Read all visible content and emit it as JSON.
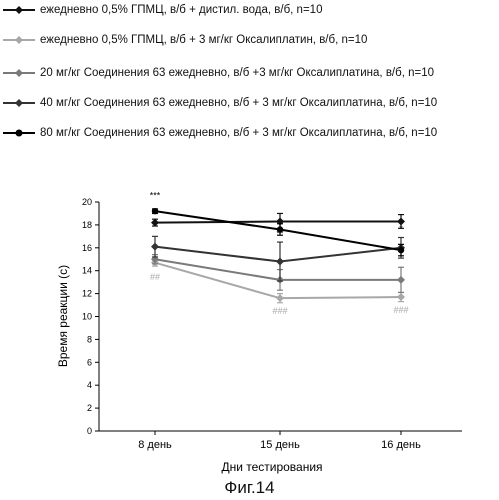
{
  "legend": [
    {
      "label": "ежедневно 0,5% ГПМЦ, в/б + дистил. вода, в/б, n=10",
      "color": "#111111",
      "marker": "diamond"
    },
    {
      "label": "ежедневно 0,5% ГПМЦ, в/б + 3 мг/кг Оксалиплатин, в/б, n=10",
      "color": "#a8a8a8",
      "marker": "diamond"
    },
    {
      "label": "20 мг/кг Соединения 63 ежедневно, в/б +3 мг/кг Оксалиплатина, в/б, n=10",
      "color": "#7a7a7a",
      "marker": "diamond"
    },
    {
      "label": "40 мг/кг Соединения 63 ежедневно, в/б + 3 мг/кг Оксалиплатина, в/б, n=10",
      "color": "#333333",
      "marker": "diamond"
    },
    {
      "label": "80 мг/кг Соединения 63 ежедневно, в/б + 3 мг/кг Оксалиплатина, в/б, n=10",
      "color": "#000000",
      "marker": "circle"
    }
  ],
  "chart_data": {
    "type": "line",
    "categories": [
      "8 день",
      "15 день",
      "16 день"
    ],
    "xlabel": "Дни тестирования",
    "ylabel": "Время реакции (с)",
    "ylim": [
      0,
      20
    ],
    "yticks": [
      0,
      2,
      4,
      6,
      8,
      10,
      12,
      14,
      16,
      18,
      20
    ],
    "grid": false,
    "legend_position": "top",
    "series": [
      {
        "name": "ежедневно 0,5% ГПМЦ, в/б + дистил. вода, в/б, n=10",
        "values": [
          18.2,
          18.3,
          18.3
        ],
        "errors": [
          0.3,
          0.7,
          0.6
        ],
        "color": "#111111",
        "marker": "diamond"
      },
      {
        "name": "ежедневно 0,5% ГПМЦ, в/б + 3 мг/кг Оксалиплатин, в/б, n=10",
        "values": [
          14.7,
          11.6,
          11.7
        ],
        "errors": [
          0.3,
          0.4,
          0.4
        ],
        "color": "#a8a8a8",
        "marker": "diamond"
      },
      {
        "name": "20 мг/кг Соединения 63 ежедневно, в/б +3 мг/кг Оксалиплатина, в/б, n=10",
        "values": [
          15.0,
          13.2,
          13.2
        ],
        "errors": [
          0.4,
          0.9,
          1.1
        ],
        "color": "#7a7a7a",
        "marker": "diamond"
      },
      {
        "name": "40 мг/кг Соединения 63 ежедневно, в/б + 3 мг/кг Оксалиплатина, в/б, n=10",
        "values": [
          16.1,
          14.8,
          16.0
        ],
        "errors": [
          0.9,
          1.7,
          0.9
        ],
        "color": "#333333",
        "marker": "diamond"
      },
      {
        "name": "80 мг/кг Соединения 63 ежедневно, в/б + 3 мг/кг Оксалиплатина, в/б, n=10",
        "values": [
          19.2,
          17.6,
          15.8
        ],
        "errors": [
          0.2,
          0.5,
          0.5
        ],
        "color": "#000000",
        "marker": "circle"
      }
    ],
    "annotations": [
      {
        "text": "***",
        "category": "8 день",
        "y": 20.3,
        "color": "#000000"
      },
      {
        "text": "##",
        "category": "8 день",
        "y": 13.2,
        "color": "#a8a8a8"
      },
      {
        "text": "**",
        "category": "15 день",
        "y": 17.0,
        "color": "#000000"
      },
      {
        "text": "###",
        "category": "15 день",
        "y": 10.2,
        "color": "#a8a8a8"
      },
      {
        "text": "*",
        "category": "16 день",
        "y": 17.4,
        "color": "#000000"
      },
      {
        "text": "###",
        "category": "16 день",
        "y": 10.3,
        "color": "#a8a8a8"
      }
    ]
  },
  "caption": "Фиг.14"
}
